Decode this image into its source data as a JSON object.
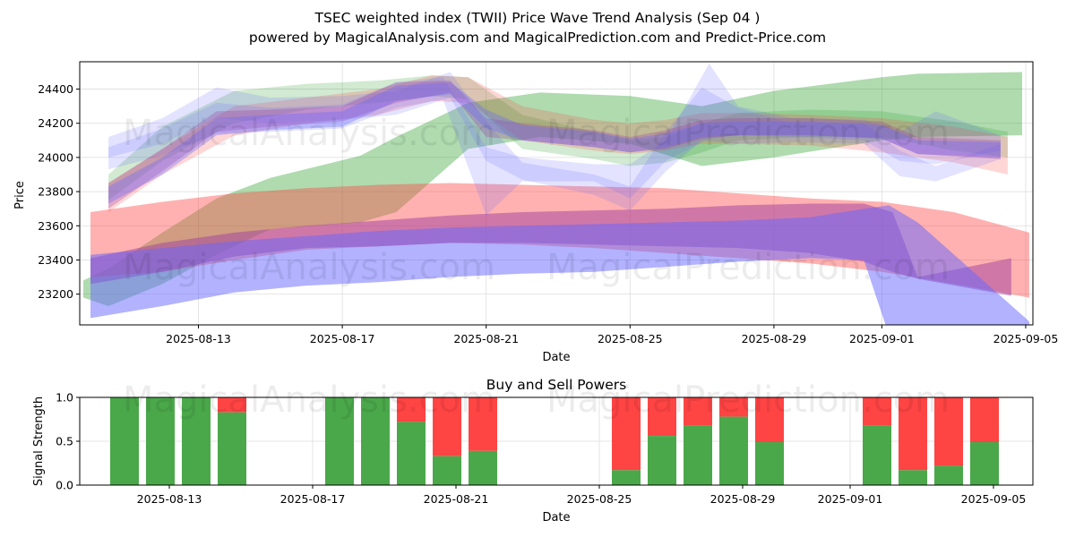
{
  "title_line1": "TSEC weighted index (TWII) Price Wave Trend Analysis (Sep 04 )",
  "title_line2": "powered by MagicalAnalysis.com and MagicalPrediction.com and Predict-Price.com",
  "watermarks": [
    "MagicalAnalysis.com",
    "MagicalPrediction.com"
  ],
  "colors": {
    "green": "#2ca02c",
    "red": "#ff4444",
    "blue": "#6666ff",
    "purple": "#a040a0",
    "bar_green": "#4aa84a",
    "bar_red": "#ff4444"
  },
  "chart_data": [
    {
      "type": "area",
      "title": "",
      "xlabel": "Date",
      "ylabel": "Price",
      "x_ticks": [
        "2025-08-13",
        "2025-08-17",
        "2025-08-21",
        "2025-08-25",
        "2025-08-29",
        "2025-09-01",
        "2025-09-05"
      ],
      "x_tick_days": [
        13,
        17,
        21,
        25,
        29,
        32,
        36
      ],
      "xlim_days": [
        9.7,
        36.2
      ],
      "y_ticks": [
        23200,
        23400,
        23600,
        23800,
        24000,
        24200,
        24400
      ],
      "ylim": [
        23020,
        24560
      ],
      "grid": true,
      "series": [
        {
          "name": "green-long-band",
          "color": "green",
          "opacity": 0.38,
          "x": [
            9.8,
            10.5,
            12,
            13.5,
            15,
            17.5,
            18.5,
            20.5,
            22.5,
            25,
            27,
            29,
            32,
            33,
            35.9
          ],
          "upper": [
            23280,
            23350,
            23560,
            23760,
            23880,
            24010,
            24120,
            24320,
            24380,
            24360,
            24300,
            24390,
            24470,
            24490,
            24500
          ],
          "lower": [
            23180,
            23130,
            23260,
            23430,
            23580,
            23620,
            23680,
            24050,
            24120,
            24080,
            23950,
            24000,
            24100,
            24120,
            24130
          ]
        },
        {
          "name": "red-long-band",
          "color": "red",
          "opacity": 0.42,
          "x": [
            10,
            12,
            14,
            16,
            18,
            20,
            22,
            24,
            26,
            28,
            30,
            32,
            34,
            36.1
          ],
          "upper": [
            23680,
            23740,
            23790,
            23820,
            23840,
            23850,
            23840,
            23830,
            23820,
            23790,
            23760,
            23740,
            23680,
            23560
          ],
          "lower": [
            23300,
            23330,
            23400,
            23460,
            23480,
            23500,
            23490,
            23470,
            23440,
            23410,
            23380,
            23330,
            23260,
            23180
          ]
        },
        {
          "name": "purple-long-band",
          "color": "purple",
          "opacity": 0.5,
          "x": [
            10,
            12,
            14,
            16,
            18,
            20,
            22,
            24,
            26,
            28,
            30,
            31.5,
            32.3,
            33,
            35.6
          ],
          "upper": [
            23410,
            23500,
            23560,
            23600,
            23630,
            23660,
            23680,
            23690,
            23700,
            23720,
            23730,
            23730,
            23680,
            23300,
            23410
          ],
          "lower": [
            23260,
            23330,
            23420,
            23470,
            23480,
            23500,
            23500,
            23490,
            23480,
            23470,
            23440,
            23390,
            23330,
            23290,
            23190
          ]
        },
        {
          "name": "blue-long-band",
          "color": "blue",
          "opacity": 0.5,
          "x": [
            10,
            12,
            14,
            16,
            18,
            20,
            22,
            24,
            26,
            28,
            30,
            31.5,
            32.2,
            33,
            36.1
          ],
          "upper": [
            23430,
            23470,
            23510,
            23540,
            23570,
            23590,
            23600,
            23610,
            23620,
            23630,
            23650,
            23700,
            23720,
            23620,
            23040
          ],
          "lower": [
            23060,
            23130,
            23210,
            23250,
            23270,
            23300,
            23320,
            23330,
            23360,
            23390,
            23410,
            23400,
            22960,
            22950,
            22980
          ]
        },
        {
          "name": "green-short-band",
          "color": "green",
          "opacity": 0.22,
          "x": [
            10.5,
            12,
            14,
            16,
            18,
            19.5,
            20.5,
            22,
            24,
            25,
            26,
            27,
            28,
            30,
            32,
            34,
            35.5
          ],
          "upper": [
            23900,
            24180,
            24390,
            24430,
            24450,
            24480,
            24470,
            24250,
            24150,
            24100,
            24120,
            24200,
            24260,
            24280,
            24270,
            24210,
            24150
          ],
          "lower": [
            23750,
            23980,
            24200,
            24280,
            24320,
            24360,
            24340,
            24050,
            23990,
            23950,
            23970,
            24030,
            24100,
            24120,
            24120,
            24040,
            24000
          ]
        },
        {
          "name": "red-short-band",
          "color": "red",
          "opacity": 0.22,
          "x": [
            10.5,
            12,
            14,
            16,
            18,
            19.5,
            20.5,
            22,
            24,
            25,
            26,
            27,
            28,
            30,
            32,
            34,
            35.5
          ],
          "upper": [
            23850,
            24050,
            24300,
            24350,
            24400,
            24480,
            24470,
            24300,
            24220,
            24200,
            24220,
            24260,
            24260,
            24250,
            24230,
            24180,
            24120
          ],
          "lower": [
            23680,
            23900,
            24130,
            24200,
            24250,
            24330,
            24320,
            24100,
            24040,
            24020,
            24040,
            24080,
            24080,
            24070,
            24030,
            23970,
            23900
          ]
        },
        {
          "name": "blue-short-band-1",
          "color": "blue",
          "opacity": 0.18,
          "x": [
            10.5,
            12,
            13.5,
            15,
            17,
            18.5,
            20,
            21,
            22,
            24,
            25,
            26,
            27,
            28,
            29.5,
            31.5,
            32.5,
            33.5,
            35.3
          ],
          "upper": [
            24120,
            24230,
            24410,
            24350,
            24360,
            24390,
            24500,
            24210,
            23970,
            23900,
            23830,
            24150,
            24410,
            24290,
            24200,
            24200,
            24040,
            23950,
            24080
          ],
          "lower": [
            24000,
            24080,
            24230,
            24200,
            24220,
            24250,
            24350,
            23980,
            23870,
            23780,
            23690,
            23920,
            24100,
            24080,
            24090,
            24080,
            23890,
            23860,
            23990
          ]
        },
        {
          "name": "blue-short-band-2",
          "color": "blue",
          "opacity": 0.18,
          "x": [
            10.5,
            12,
            13.5,
            15,
            17,
            18.5,
            19.8,
            21,
            22,
            24,
            25,
            26,
            27.2,
            28,
            29.5,
            31.5,
            32.5,
            33.5,
            35.3
          ],
          "upper": [
            24060,
            24170,
            24320,
            24290,
            24310,
            24440,
            24470,
            24060,
            24000,
            23960,
            23960,
            24100,
            24550,
            24300,
            24230,
            24220,
            24150,
            24270,
            24130
          ],
          "lower": [
            23930,
            24010,
            24140,
            24150,
            24170,
            24290,
            24340,
            23660,
            23860,
            23860,
            23760,
            23980,
            24110,
            24130,
            24120,
            24100,
            23980,
            23960,
            24040
          ]
        },
        {
          "name": "purple-short-band",
          "color": "purple",
          "opacity": 0.3,
          "x": [
            10.5,
            12,
            13.5,
            15,
            17,
            18.5,
            20,
            21,
            22,
            24,
            25,
            26,
            27,
            28,
            30,
            32,
            33,
            35.3
          ],
          "upper": [
            23850,
            24050,
            24270,
            24280,
            24300,
            24440,
            24450,
            24230,
            24200,
            24160,
            24120,
            24160,
            24220,
            24230,
            24230,
            24210,
            24120,
            24100
          ],
          "lower": [
            23700,
            23920,
            24150,
            24180,
            24210,
            24320,
            24380,
            24120,
            24100,
            24060,
            24030,
            24050,
            24110,
            24130,
            24130,
            24110,
            24020,
            23990
          ]
        },
        {
          "name": "blue-mid-band",
          "color": "blue",
          "opacity": 0.35,
          "x": [
            10.5,
            12,
            13.5,
            15,
            17,
            18.5,
            20,
            21,
            22,
            24,
            25,
            26,
            27,
            28,
            30,
            32,
            33,
            35.3
          ],
          "upper": [
            23830,
            24000,
            24230,
            24250,
            24270,
            24420,
            24440,
            24280,
            24190,
            24150,
            24110,
            24140,
            24200,
            24210,
            24210,
            24190,
            24100,
            24090
          ],
          "lower": [
            23730,
            23900,
            24130,
            24160,
            24180,
            24330,
            24370,
            24170,
            24100,
            24060,
            24030,
            24060,
            24120,
            24130,
            24130,
            24110,
            24020,
            24000
          ]
        }
      ]
    },
    {
      "type": "bar",
      "title": "Buy and Sell Powers",
      "xlabel": "Date",
      "ylabel": "Signal Strength",
      "x_ticks": [
        "2025-08-13",
        "2025-08-17",
        "2025-08-21",
        "2025-08-25",
        "2025-08-29",
        "2025-09-01",
        "2025-09-05"
      ],
      "y_ticks": [
        "0.0",
        "0.5",
        "1.0"
      ],
      "ylim": [
        0,
        1
      ],
      "grid": true,
      "series_names": [
        "buy",
        "sell"
      ],
      "days": [
        12,
        13,
        14,
        15,
        18,
        19,
        20,
        21,
        22,
        26,
        27,
        28,
        29,
        30,
        33,
        34,
        35,
        36
      ],
      "buy": [
        1.0,
        1.0,
        1.0,
        0.83,
        1.0,
        1.0,
        0.72,
        0.33,
        0.39,
        0.17,
        0.56,
        0.68,
        0.78,
        0.49,
        0.68,
        0.17,
        0.22,
        0.49
      ]
    }
  ]
}
